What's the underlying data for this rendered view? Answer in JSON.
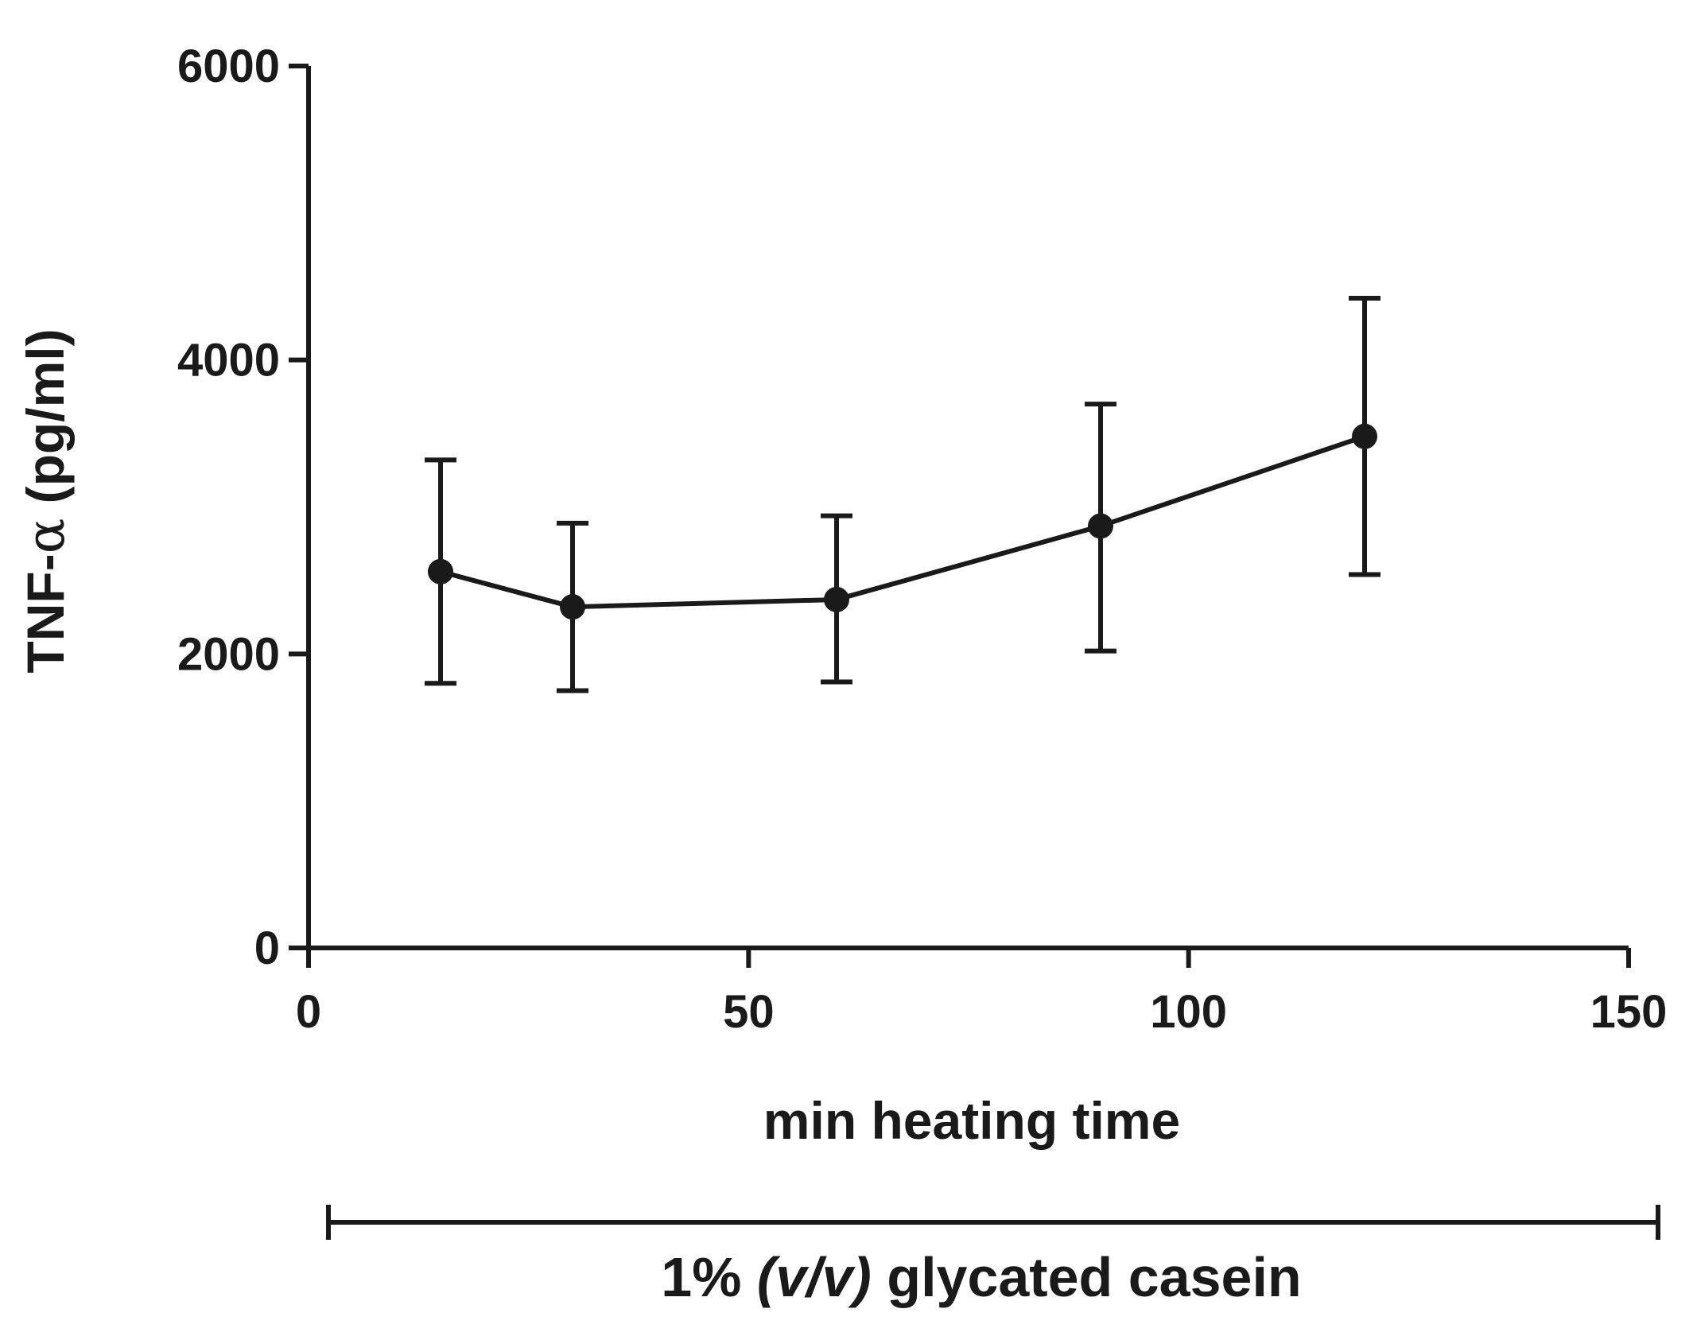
{
  "chart_data": {
    "type": "line",
    "title": "",
    "xlabel": "min heating time",
    "ylabel_main": "TNF-",
    "ylabel_greek": "α",
    "ylabel_unit": " (pg/ml)",
    "xlim": [
      0,
      150
    ],
    "ylim": [
      0,
      6000
    ],
    "x_ticks": [
      0,
      50,
      100,
      150
    ],
    "x_tick_labels": [
      "0",
      "50",
      "100",
      "150"
    ],
    "y_ticks": [
      0,
      2000,
      4000,
      6000
    ],
    "y_tick_labels": [
      "0",
      "2000",
      "4000",
      "6000"
    ],
    "grid": false,
    "series": [
      {
        "name": "TNF-α",
        "x": [
          15,
          30,
          60,
          90,
          120
        ],
        "y": [
          2560,
          2320,
          2370,
          2870,
          3480
        ],
        "error_low": [
          1800,
          1750,
          1810,
          2020,
          2540
        ],
        "error_high": [
          3320,
          2890,
          2940,
          3700,
          4420
        ]
      }
    ],
    "group_bracket": {
      "label_prefix": "1% ",
      "label_italic": "(v/v)",
      "label_suffix": " glycated casein"
    }
  },
  "colors": {
    "ink": "#1a1a1a",
    "background": "#ffffff"
  }
}
